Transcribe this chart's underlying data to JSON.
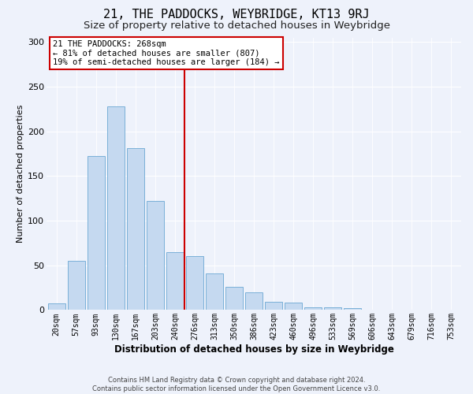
{
  "title": "21, THE PADDOCKS, WEYBRIDGE, KT13 9RJ",
  "subtitle": "Size of property relative to detached houses in Weybridge",
  "xlabel": "Distribution of detached houses by size in Weybridge",
  "ylabel": "Number of detached properties",
  "bar_heights": [
    7,
    55,
    172,
    228,
    181,
    122,
    65,
    60,
    41,
    26,
    20,
    9,
    8,
    3,
    3,
    2,
    0,
    0,
    0,
    0,
    0
  ],
  "bar_labels": [
    "20sqm",
    "57sqm",
    "93sqm",
    "130sqm",
    "167sqm",
    "203sqm",
    "240sqm",
    "276sqm",
    "313sqm",
    "350sqm",
    "386sqm",
    "423sqm",
    "460sqm",
    "496sqm",
    "533sqm",
    "569sqm",
    "606sqm",
    "643sqm",
    "679sqm",
    "716sqm",
    "753sqm"
  ],
  "bar_color": "#c5d9f0",
  "bar_edge_color": "#7ab0d8",
  "vline_color": "#cc0000",
  "vline_x": 6.5,
  "annotation_line1": "21 THE PADDOCKS: 268sqm",
  "annotation_line2": "← 81% of detached houses are smaller (807)",
  "annotation_line3": "19% of semi-detached houses are larger (184) →",
  "annotation_box_edge_color": "#cc0000",
  "ylim_max": 305,
  "yticks": [
    0,
    50,
    100,
    150,
    200,
    250,
    300
  ],
  "background_color": "#eef2fb",
  "grid_color": "#ffffff",
  "footer_line1": "Contains HM Land Registry data © Crown copyright and database right 2024.",
  "footer_line2": "Contains public sector information licensed under the Open Government Licence v3.0.",
  "title_fontsize": 11,
  "subtitle_fontsize": 9.5,
  "ylabel_fontsize": 8,
  "xlabel_fontsize": 8.5,
  "tick_fontsize": 7,
  "annotation_fontsize": 7.5,
  "footer_fontsize": 6
}
